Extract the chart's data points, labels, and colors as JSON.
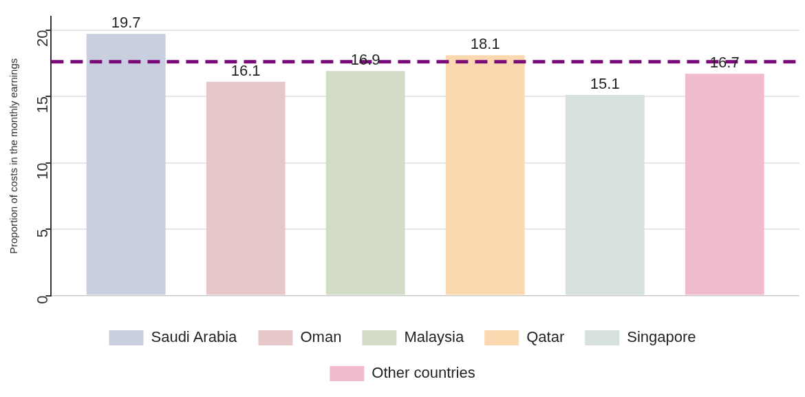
{
  "chart_data": {
    "type": "bar",
    "ylabel": "Proportion of costs in the monthly earnings",
    "categories": [
      null
    ],
    "series": [
      {
        "name": "Saudi Arabia",
        "color": "#c9cfdf",
        "values": [
          19.7
        ]
      },
      {
        "name": "Oman",
        "color": "#e6c8cb",
        "values": [
          16.1
        ]
      },
      {
        "name": "Malaysia",
        "color": "#d3dcc6",
        "values": [
          16.9
        ]
      },
      {
        "name": "Qatar",
        "color": "#fad8b0",
        "values": [
          18.1
        ]
      },
      {
        "name": "Singapore",
        "color": "#d6e0dc",
        "values": [
          15.1
        ]
      },
      {
        "name": "Other countries",
        "color": "#f0bccb",
        "values": [
          16.7
        ]
      }
    ],
    "ylim": [
      0,
      21
    ],
    "yticks": [
      0,
      5,
      10,
      15,
      20
    ],
    "grid": "y",
    "legend": "bottom",
    "data_labels": true,
    "ref_lines": [
      {
        "axis": "y",
        "value": 17.6,
        "color": "#7a0a7a",
        "line_style": "dashed"
      }
    ]
  }
}
